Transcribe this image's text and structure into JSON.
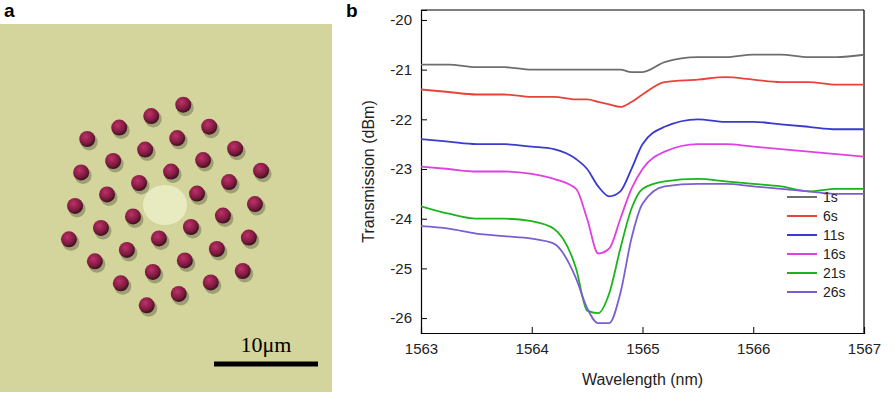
{
  "figure": {
    "panel_labels": [
      "a",
      "b"
    ],
    "scale_bar": "10μm"
  },
  "chart_data": {
    "type": "line",
    "x_label": "Wavelength (nm)",
    "y_label": "Transmission (dBm)",
    "x": [
      1563,
      1563.25,
      1563.5,
      1563.75,
      1564,
      1564.2,
      1564.4,
      1564.5,
      1564.6,
      1564.7,
      1564.8,
      1564.9,
      1565,
      1565.2,
      1565.5,
      1565.75,
      1566,
      1566.25,
      1566.5,
      1566.75,
      1567
    ],
    "series": [
      {
        "name": "1s",
        "color": "#6e6e6e",
        "values": [
          -20.9,
          -20.9,
          -20.95,
          -20.95,
          -21.0,
          -21.0,
          -21.0,
          -21.0,
          -21.0,
          -21.0,
          -21.0,
          -21.05,
          -21.05,
          -20.85,
          -20.75,
          -20.75,
          -20.7,
          -20.7,
          -20.75,
          -20.75,
          -20.7
        ]
      },
      {
        "name": "6s",
        "color": "#e8433a",
        "values": [
          -21.4,
          -21.45,
          -21.5,
          -21.5,
          -21.55,
          -21.55,
          -21.6,
          -21.6,
          -21.65,
          -21.7,
          -21.75,
          -21.65,
          -21.5,
          -21.25,
          -21.2,
          -21.15,
          -21.2,
          -21.25,
          -21.25,
          -21.3,
          -21.3
        ]
      },
      {
        "name": "11s",
        "color": "#3a3ad0",
        "values": [
          -22.4,
          -22.45,
          -22.5,
          -22.5,
          -22.55,
          -22.6,
          -22.8,
          -23.0,
          -23.35,
          -23.55,
          -23.45,
          -23.0,
          -22.5,
          -22.15,
          -22.0,
          -22.05,
          -22.05,
          -22.1,
          -22.15,
          -22.2,
          -22.2
        ]
      },
      {
        "name": "16s",
        "color": "#e040e0",
        "values": [
          -22.95,
          -23.0,
          -23.05,
          -23.05,
          -23.1,
          -23.2,
          -23.4,
          -24.0,
          -24.7,
          -24.6,
          -24.0,
          -23.4,
          -23.0,
          -22.65,
          -22.5,
          -22.5,
          -22.55,
          -22.6,
          -22.65,
          -22.7,
          -22.75
        ]
      },
      {
        "name": "21s",
        "color": "#1db31d",
        "values": [
          -23.75,
          -23.9,
          -24.0,
          -24.0,
          -24.05,
          -24.2,
          -25.0,
          -25.85,
          -25.9,
          -25.5,
          -24.6,
          -23.8,
          -23.4,
          -23.25,
          -23.2,
          -23.25,
          -23.3,
          -23.35,
          -23.45,
          -23.4,
          -23.4
        ]
      },
      {
        "name": "26s",
        "color": "#7b5fd0",
        "values": [
          -24.15,
          -24.2,
          -24.3,
          -24.35,
          -24.4,
          -24.5,
          -25.2,
          -25.8,
          -26.1,
          -26.1,
          -25.5,
          -24.4,
          -23.7,
          -23.35,
          -23.3,
          -23.3,
          -23.35,
          -23.4,
          -23.45,
          -23.5,
          -23.5
        ]
      }
    ],
    "xlim": [
      1563,
      1567
    ],
    "xticks": [
      1563,
      1564,
      1565,
      1566,
      1567
    ],
    "ylim": [
      -26.3,
      -19.8
    ],
    "yticks": [
      -26,
      -25,
      -24,
      -23,
      -22,
      -21,
      -20
    ],
    "legend": "lower right",
    "grid": false
  }
}
